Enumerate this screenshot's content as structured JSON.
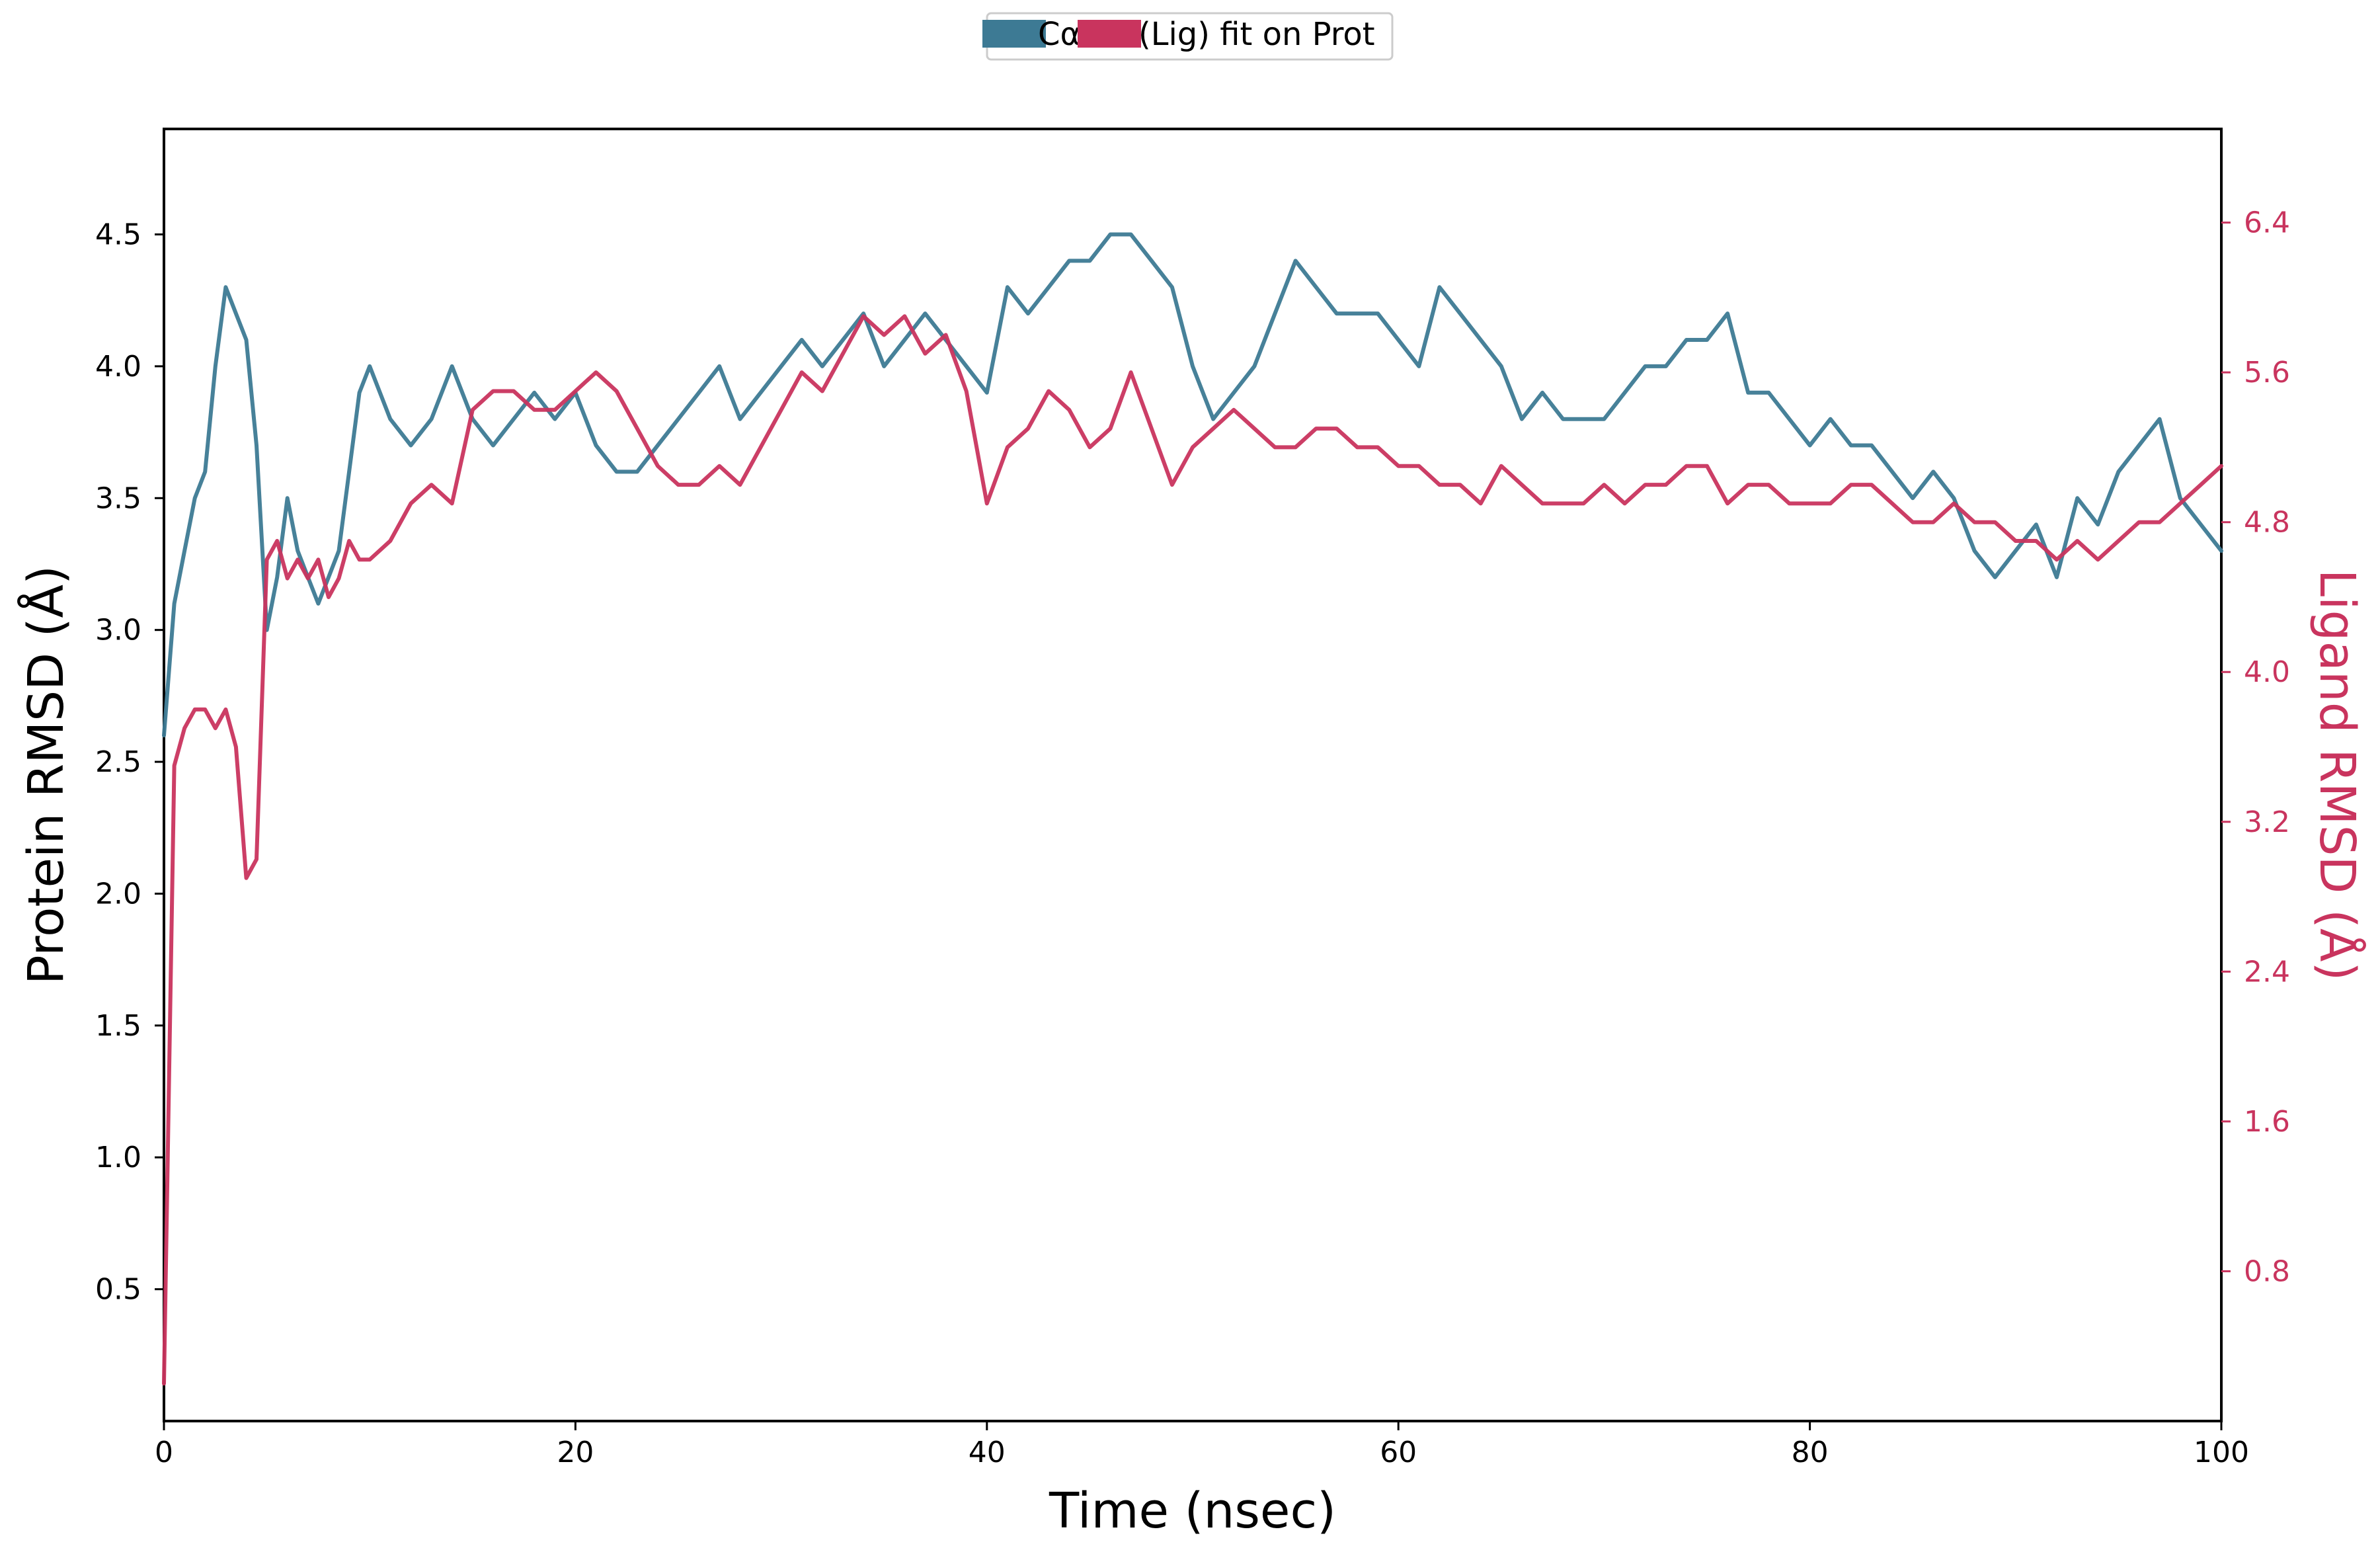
{
  "chart_data": {
    "type": "line",
    "xlabel": "Time (nsec)",
    "ylabel": "Protein RMSD (Å)",
    "y2label": "Ligand RMSD (Å)",
    "xlim": [
      0,
      100
    ],
    "ylim": [
      0.0,
      4.9
    ],
    "y2lim": [
      0.0,
      6.9
    ],
    "xticks": [
      "0",
      "20",
      "40",
      "60",
      "80",
      "100"
    ],
    "yticks": [
      "0.5",
      "1.0",
      "1.5",
      "2.0",
      "2.5",
      "3.0",
      "3.5",
      "4.0",
      "4.5"
    ],
    "y2ticks": [
      "0.8",
      "1.6",
      "2.4",
      "3.2",
      "4.0",
      "4.8",
      "5.6",
      "6.4"
    ],
    "legend_position": "top-center",
    "legend": {
      "ca_label": "Cα",
      "lig_label": "(Lig) fit on Prot"
    },
    "colors": {
      "ca": "#3d7a94",
      "lig": "#c9345e",
      "lig_axis": "#c9345e"
    },
    "series": [
      {
        "name": "Cα",
        "axis": "left",
        "color": "#3d7a94",
        "x": [
          0,
          0.5,
          1,
          1.5,
          2,
          2.5,
          3,
          3.5,
          4,
          4.5,
          5,
          5.5,
          6,
          6.5,
          7,
          7.5,
          8,
          8.5,
          9,
          9.5,
          10,
          11,
          12,
          13,
          14,
          15,
          16,
          17,
          18,
          19,
          20,
          21,
          22,
          23,
          24,
          25,
          26,
          27,
          28,
          29,
          30,
          31,
          32,
          33,
          34,
          35,
          36,
          37,
          38,
          39,
          40,
          41,
          42,
          43,
          44,
          45,
          46,
          47,
          48,
          49,
          50,
          51,
          52,
          53,
          54,
          55,
          56,
          57,
          58,
          59,
          60,
          61,
          62,
          63,
          64,
          65,
          66,
          67,
          68,
          69,
          70,
          71,
          72,
          73,
          74,
          75,
          76,
          77,
          78,
          79,
          80,
          81,
          82,
          83,
          84,
          85,
          86,
          87,
          88,
          89,
          90,
          91,
          92,
          93,
          94,
          95,
          96,
          97,
          98,
          99,
          100
        ],
        "values": [
          2.6,
          3.1,
          3.3,
          3.5,
          3.6,
          4.0,
          4.3,
          4.2,
          4.1,
          3.7,
          3.0,
          3.2,
          3.5,
          3.3,
          3.2,
          3.1,
          3.2,
          3.3,
          3.6,
          3.9,
          4.0,
          3.8,
          3.7,
          3.8,
          4.0,
          3.8,
          3.7,
          3.8,
          3.9,
          3.8,
          3.9,
          3.7,
          3.6,
          3.6,
          3.7,
          3.8,
          3.9,
          4.0,
          3.8,
          3.9,
          4.0,
          4.1,
          4.0,
          4.1,
          4.2,
          4.0,
          4.1,
          4.2,
          4.1,
          4.0,
          3.9,
          4.3,
          4.2,
          4.3,
          4.4,
          4.4,
          4.5,
          4.5,
          4.4,
          4.3,
          4.0,
          3.8,
          3.9,
          4.0,
          4.2,
          4.4,
          4.3,
          4.2,
          4.2,
          4.2,
          4.1,
          4.0,
          4.3,
          4.2,
          4.1,
          4.0,
          3.8,
          3.9,
          3.8,
          3.8,
          3.8,
          3.9,
          4.0,
          4.0,
          4.1,
          4.1,
          4.2,
          3.9,
          3.9,
          3.8,
          3.7,
          3.8,
          3.7,
          3.7,
          3.6,
          3.5,
          3.6,
          3.5,
          3.3,
          3.2,
          3.3,
          3.4,
          3.2,
          3.5,
          3.4,
          3.6,
          3.7,
          3.8,
          3.5,
          3.4,
          3.3
        ]
      },
      {
        "name": "(Lig) fit on Prot",
        "axis": "right",
        "color": "#c9345e",
        "x": [
          0,
          0.5,
          1,
          1.5,
          2,
          2.5,
          3,
          3.5,
          4,
          4.5,
          5,
          5.5,
          6,
          6.5,
          7,
          7.5,
          8,
          8.5,
          9,
          9.5,
          10,
          11,
          12,
          13,
          14,
          15,
          16,
          17,
          18,
          19,
          20,
          21,
          22,
          23,
          24,
          25,
          26,
          27,
          28,
          29,
          30,
          31,
          32,
          33,
          34,
          35,
          36,
          37,
          38,
          39,
          40,
          41,
          42,
          43,
          44,
          45,
          46,
          47,
          48,
          49,
          50,
          51,
          52,
          53,
          54,
          55,
          56,
          57,
          58,
          59,
          60,
          61,
          62,
          63,
          64,
          65,
          66,
          67,
          68,
          69,
          70,
          71,
          72,
          73,
          74,
          75,
          76,
          77,
          78,
          79,
          80,
          81,
          82,
          83,
          84,
          85,
          86,
          87,
          88,
          89,
          90,
          91,
          92,
          93,
          94,
          95,
          96,
          97,
          98,
          99,
          100
        ],
        "values": [
          0.2,
          3.5,
          3.7,
          3.8,
          3.8,
          3.7,
          3.8,
          3.6,
          2.9,
          3.0,
          4.6,
          4.7,
          4.5,
          4.6,
          4.5,
          4.6,
          4.4,
          4.5,
          4.7,
          4.6,
          4.6,
          4.7,
          4.9,
          5.0,
          4.9,
          5.4,
          5.5,
          5.5,
          5.4,
          5.4,
          5.5,
          5.6,
          5.5,
          5.3,
          5.1,
          5.0,
          5.0,
          5.1,
          5.0,
          5.2,
          5.4,
          5.6,
          5.5,
          5.7,
          5.9,
          5.8,
          5.9,
          5.7,
          5.8,
          5.5,
          4.9,
          5.2,
          5.3,
          5.5,
          5.4,
          5.2,
          5.3,
          5.6,
          5.3,
          5.0,
          5.2,
          5.3,
          5.4,
          5.3,
          5.2,
          5.2,
          5.3,
          5.3,
          5.2,
          5.2,
          5.1,
          5.1,
          5.0,
          5.0,
          4.9,
          5.1,
          5.0,
          4.9,
          4.9,
          4.9,
          5.0,
          4.9,
          5.0,
          5.0,
          5.1,
          5.1,
          4.9,
          5.0,
          5.0,
          4.9,
          4.9,
          4.9,
          5.0,
          5.0,
          4.9,
          4.8,
          4.8,
          4.9,
          4.8,
          4.8,
          4.7,
          4.7,
          4.6,
          4.7,
          4.6,
          4.7,
          4.8,
          4.8,
          4.9,
          5.0,
          5.1
        ]
      }
    ]
  }
}
